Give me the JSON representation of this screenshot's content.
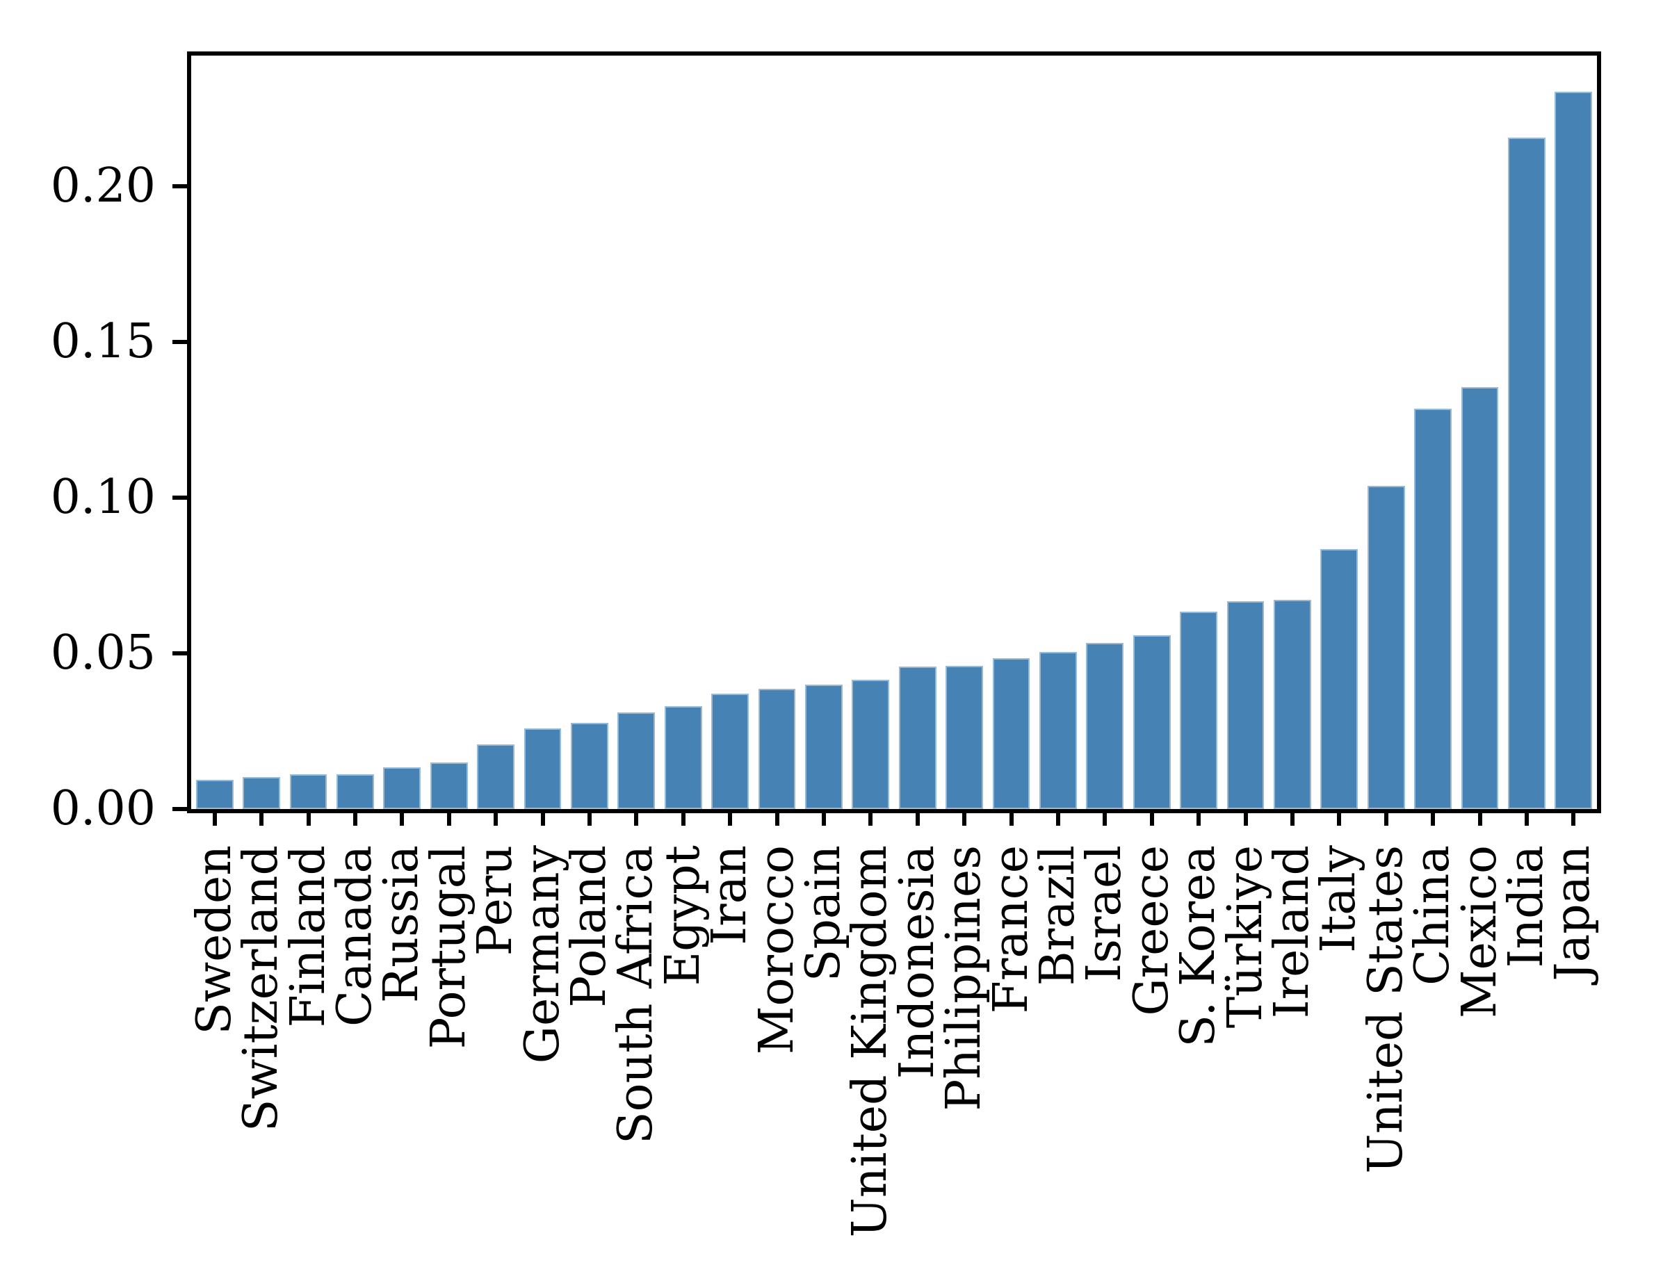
{
  "chart_data": {
    "type": "bar",
    "title": "",
    "xlabel": "",
    "ylabel": "",
    "categories": [
      "Sweden",
      "Switzerland",
      "Finland",
      "Canada",
      "Russia",
      "Portugal",
      "Peru",
      "Germany",
      "Poland",
      "South Africa",
      "Egypt",
      "Iran",
      "Morocco",
      "Spain",
      "United Kingdom",
      "Indonesia",
      "Philippines",
      "France",
      "Brazil",
      "Israel",
      "Greece",
      "S. Korea",
      "Türkiye",
      "Ireland",
      "Italy",
      "United States",
      "China",
      "Mexico",
      "India",
      "Japan"
    ],
    "values": [
      0.0094,
      0.0102,
      0.0111,
      0.0112,
      0.0133,
      0.0149,
      0.0208,
      0.0259,
      0.0277,
      0.031,
      0.0331,
      0.037,
      0.0386,
      0.04,
      0.0416,
      0.0458,
      0.0461,
      0.0485,
      0.0504,
      0.0534,
      0.0558,
      0.0633,
      0.0668,
      0.0672,
      0.0836,
      0.1037,
      0.1285,
      0.1356,
      0.2157,
      0.2304
    ],
    "ylim": [
      0,
      0.242
    ],
    "yticks": [
      {
        "value": 0.0,
        "label": "0.00"
      },
      {
        "value": 0.05,
        "label": "0.05"
      },
      {
        "value": 0.1,
        "label": "0.10"
      },
      {
        "value": 0.15,
        "label": "0.15"
      },
      {
        "value": 0.2,
        "label": "0.20"
      }
    ],
    "grid": false,
    "legend_position": "none",
    "bar_color": "#4682b4",
    "bar_edge_color": "rgba(255,255,255,0.45)",
    "axis_color": "#000000",
    "background_color": "#ffffff",
    "x_labels_rotation_deg": 90
  }
}
